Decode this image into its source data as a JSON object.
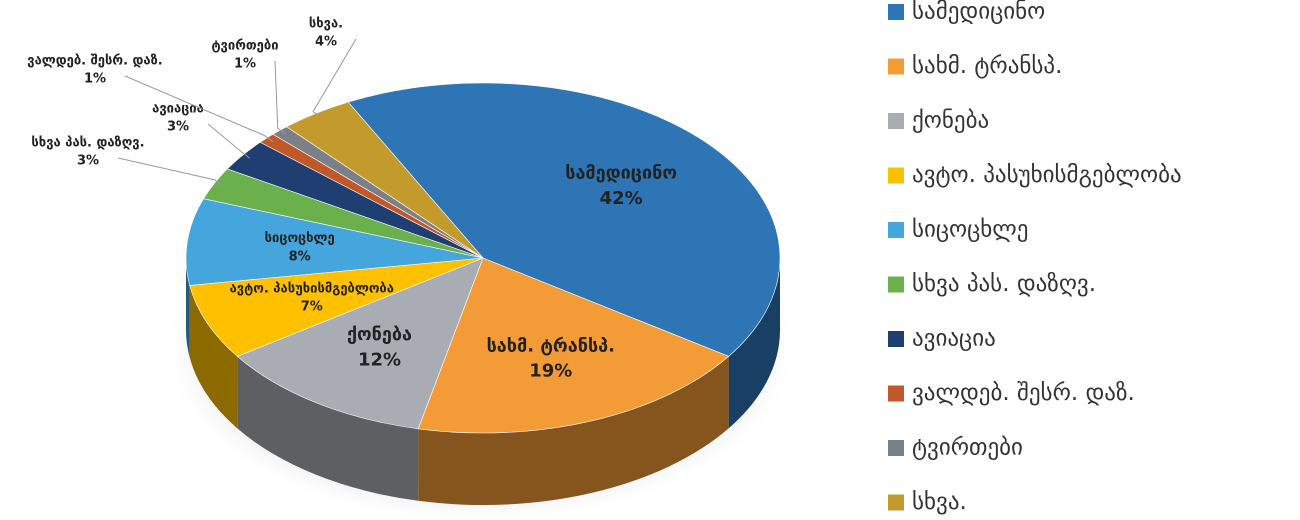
{
  "chart_data": {
    "type": "pie",
    "categories": [
      "სამედიცინო",
      "სახმ. ტრანსპ.",
      "ქონება",
      "ავტო. პასუხისმგებლობა",
      "სიცოცხლე",
      "სხვა პას. დაზღვ.",
      "ავიაცია",
      "ვალდებ. შესრ. დაზ.",
      "ტვირთები",
      "სხვა."
    ],
    "values": [
      42,
      19,
      12,
      7,
      8,
      3,
      3,
      1,
      1,
      4
    ],
    "value_labels": [
      "42%",
      "19%",
      "12%",
      "7%",
      "8%",
      "3%",
      "3%",
      "1%",
      "1%",
      "4%"
    ],
    "colors": [
      "#2e75b6",
      "#f39b37",
      "#a9acb3",
      "#ffc000",
      "#44a6dd",
      "#6ab04c",
      "#1f3f73",
      "#c0582a",
      "#7b7f88",
      "#c39b2c"
    ],
    "legend": "right"
  }
}
